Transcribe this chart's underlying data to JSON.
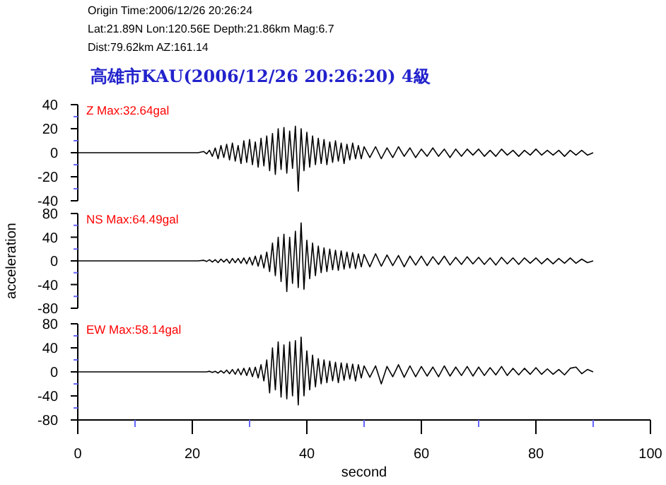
{
  "chart_data": [
    {
      "type": "line",
      "title": "高雄市KAU(2006/12/26 20:26:20)    4級",
      "annotations": [
        "Origin Time:2006/12/26 20:26:24",
        "Lat:21.89N  Lon:120.56E  Depth:21.86km  Mag:6.7",
        "Dist:79.62km  AZ:161.14",
        "Z Max:32.64gal"
      ],
      "xlim": [
        0,
        100
      ],
      "ylim": [
        -40,
        40
      ],
      "yticks": [
        -40,
        {
          "value": -30,
          "label": null
        },
        -20,
        {
          "value": -10,
          "label": null
        },
        0,
        {
          "value": 10,
          "label": null
        },
        20,
        {
          "value": 30,
          "label": null
        },
        40
      ],
      "tick_labels": "y",
      "grid": false,
      "x": [
        0,
        21,
        22,
        22.5,
        23,
        23.5,
        24,
        24.5,
        25,
        25.5,
        26,
        26.5,
        27,
        27.5,
        28,
        28.5,
        29,
        29.5,
        30,
        30.5,
        31,
        31.5,
        32,
        32.5,
        33,
        33.5,
        34,
        34.5,
        35,
        35.5,
        36,
        36.5,
        37,
        37.5,
        38,
        38.5,
        39,
        39.5,
        40,
        40.5,
        41,
        41.5,
        42,
        42.5,
        43,
        43.5,
        44,
        44.5,
        45,
        45.5,
        46,
        46.5,
        47,
        47.5,
        48,
        48.5,
        49,
        49.5,
        50,
        51,
        52,
        53,
        54,
        55,
        56,
        57,
        58,
        59,
        60,
        61,
        62,
        63,
        64,
        65,
        66,
        67,
        68,
        69,
        70,
        71,
        72,
        73,
        74,
        75,
        76,
        77,
        78,
        79,
        80,
        81,
        82,
        83,
        84,
        85,
        86,
        87,
        88,
        89,
        90
      ],
      "series": [
        {
          "color": "#000000",
          "values": [
            0,
            0,
            1,
            -1,
            2,
            -3,
            4,
            -5,
            6,
            -4,
            7,
            -6,
            8,
            -7,
            6,
            -9,
            10,
            -8,
            11,
            -10,
            9,
            -12,
            12,
            -11,
            14,
            -15,
            16,
            -18,
            20,
            -14,
            21,
            -17,
            18,
            -13,
            22,
            -32,
            20,
            -15,
            17,
            -12,
            14,
            -10,
            12,
            -9,
            11,
            -10,
            9,
            -8,
            10,
            -7,
            8,
            -9,
            7,
            -6,
            8,
            -5,
            6,
            -5,
            5,
            -4,
            5,
            -5,
            4,
            -4,
            5,
            -3,
            4,
            -4,
            3,
            -3,
            4,
            -3,
            3,
            -4,
            3,
            -3,
            3,
            -2,
            3,
            -3,
            2,
            -3,
            3,
            -2,
            2,
            -3,
            2,
            -2,
            3,
            -2,
            2,
            -2,
            2,
            -3,
            2,
            -2,
            2,
            -2,
            0
          ]
        }
      ]
    },
    {
      "type": "line",
      "ylabel": "acceleration",
      "annotations": [
        "NS Max:64.49gal"
      ],
      "xlim": [
        0,
        100
      ],
      "ylim": [
        -80,
        80
      ],
      "yticks": [
        -80,
        {
          "value": -60,
          "label": null
        },
        -40,
        {
          "value": -20,
          "label": null
        },
        0,
        {
          "value": 20,
          "label": null
        },
        40,
        {
          "value": 60,
          "label": null
        },
        80
      ],
      "tick_labels": "y",
      "grid": false,
      "x": [
        0,
        21,
        22,
        22.5,
        23,
        23.5,
        24,
        24.5,
        25,
        25.5,
        26,
        26.5,
        27,
        27.5,
        28,
        28.5,
        29,
        29.5,
        30,
        30.5,
        31,
        31.5,
        32,
        32.5,
        33,
        33.5,
        34,
        34.5,
        35,
        35.5,
        36,
        36.5,
        37,
        37.5,
        38,
        38.5,
        39,
        39.5,
        40,
        40.5,
        41,
        41.5,
        42,
        42.5,
        43,
        43.5,
        44,
        44.5,
        45,
        45.5,
        46,
        46.5,
        47,
        47.5,
        48,
        48.5,
        49,
        49.5,
        50,
        51,
        52,
        53,
        54,
        55,
        56,
        57,
        58,
        59,
        60,
        61,
        62,
        63,
        64,
        65,
        66,
        67,
        68,
        69,
        70,
        71,
        72,
        73,
        74,
        75,
        76,
        77,
        78,
        79,
        80,
        81,
        82,
        83,
        84,
        85,
        86,
        87,
        88,
        89,
        90
      ],
      "series": [
        {
          "color": "#000000",
          "values": [
            0,
            0,
            1,
            -1,
            2,
            -2,
            2,
            -3,
            3,
            -2,
            3,
            -4,
            4,
            -3,
            4,
            -4,
            5,
            -5,
            6,
            -7,
            8,
            -9,
            10,
            -12,
            15,
            -18,
            30,
            -25,
            40,
            -35,
            45,
            -52,
            40,
            -38,
            50,
            -45,
            64,
            -48,
            35,
            -30,
            30,
            -25,
            25,
            -20,
            22,
            -18,
            20,
            -15,
            18,
            -16,
            17,
            -14,
            15,
            -12,
            14,
            -13,
            12,
            -10,
            11,
            -10,
            12,
            -9,
            10,
            -8,
            9,
            -10,
            8,
            -7,
            8,
            -8,
            7,
            -6,
            8,
            -7,
            6,
            -6,
            7,
            -5,
            6,
            -6,
            5,
            -7,
            6,
            -5,
            5,
            -6,
            5,
            -4,
            5,
            -5,
            4,
            -5,
            4,
            -4,
            5,
            -4,
            3,
            -3,
            0
          ]
        }
      ]
    },
    {
      "type": "line",
      "xlabel": "second",
      "annotations": [
        "EW Max:58.14gal"
      ],
      "xlim": [
        0,
        100
      ],
      "xticks": [
        0,
        {
          "value": 10,
          "label": null
        },
        20,
        {
          "value": 30,
          "label": null
        },
        40,
        {
          "value": 50,
          "label": null
        },
        60,
        {
          "value": 70,
          "label": null
        },
        80,
        {
          "value": 90,
          "label": null
        },
        100
      ],
      "ylim": [
        -80,
        80
      ],
      "yticks": [
        -80,
        {
          "value": -60,
          "label": null
        },
        -40,
        {
          "value": -20,
          "label": null
        },
        0,
        {
          "value": 20,
          "label": null
        },
        40,
        {
          "value": 60,
          "label": null
        },
        80
      ],
      "grid": false,
      "x": [
        0,
        21,
        22,
        22.5,
        23,
        23.5,
        24,
        24.5,
        25,
        25.5,
        26,
        26.5,
        27,
        27.5,
        28,
        28.5,
        29,
        29.5,
        30,
        30.5,
        31,
        31.5,
        32,
        32.5,
        33,
        33.5,
        34,
        34.5,
        35,
        35.5,
        36,
        36.5,
        37,
        37.5,
        38,
        38.5,
        39,
        39.5,
        40,
        40.5,
        41,
        41.5,
        42,
        42.5,
        43,
        43.5,
        44,
        44.5,
        45,
        45.5,
        46,
        46.5,
        47,
        47.5,
        48,
        48.5,
        49,
        49.5,
        50,
        51,
        52,
        53,
        54,
        55,
        56,
        57,
        58,
        59,
        60,
        61,
        62,
        63,
        64,
        65,
        66,
        67,
        68,
        69,
        70,
        71,
        72,
        73,
        74,
        75,
        76,
        77,
        78,
        79,
        80,
        81,
        82,
        83,
        84,
        85,
        86,
        87,
        88,
        89,
        90
      ],
      "series": [
        {
          "color": "#000000",
          "values": [
            0,
            0,
            0,
            0,
            1,
            -1,
            1,
            -2,
            2,
            -2,
            3,
            -3,
            4,
            -4,
            5,
            -5,
            6,
            -6,
            7,
            -8,
            8,
            -10,
            12,
            -15,
            20,
            -35,
            40,
            -30,
            50,
            -42,
            45,
            -45,
            50,
            -40,
            52,
            -55,
            58,
            -40,
            35,
            -30,
            28,
            -25,
            22,
            -20,
            20,
            -18,
            18,
            -15,
            16,
            -18,
            15,
            -14,
            14,
            -12,
            13,
            -15,
            12,
            -10,
            10,
            -9,
            10,
            -20,
            9,
            -8,
            12,
            -9,
            10,
            -8,
            9,
            -7,
            8,
            -8,
            10,
            -7,
            8,
            -6,
            9,
            -7,
            8,
            -6,
            7,
            -5,
            9,
            -6,
            6,
            -5,
            6,
            -4,
            7,
            -4,
            5,
            -4,
            4,
            -5,
            6,
            8,
            -3,
            4,
            0
          ]
        }
      ]
    }
  ]
}
